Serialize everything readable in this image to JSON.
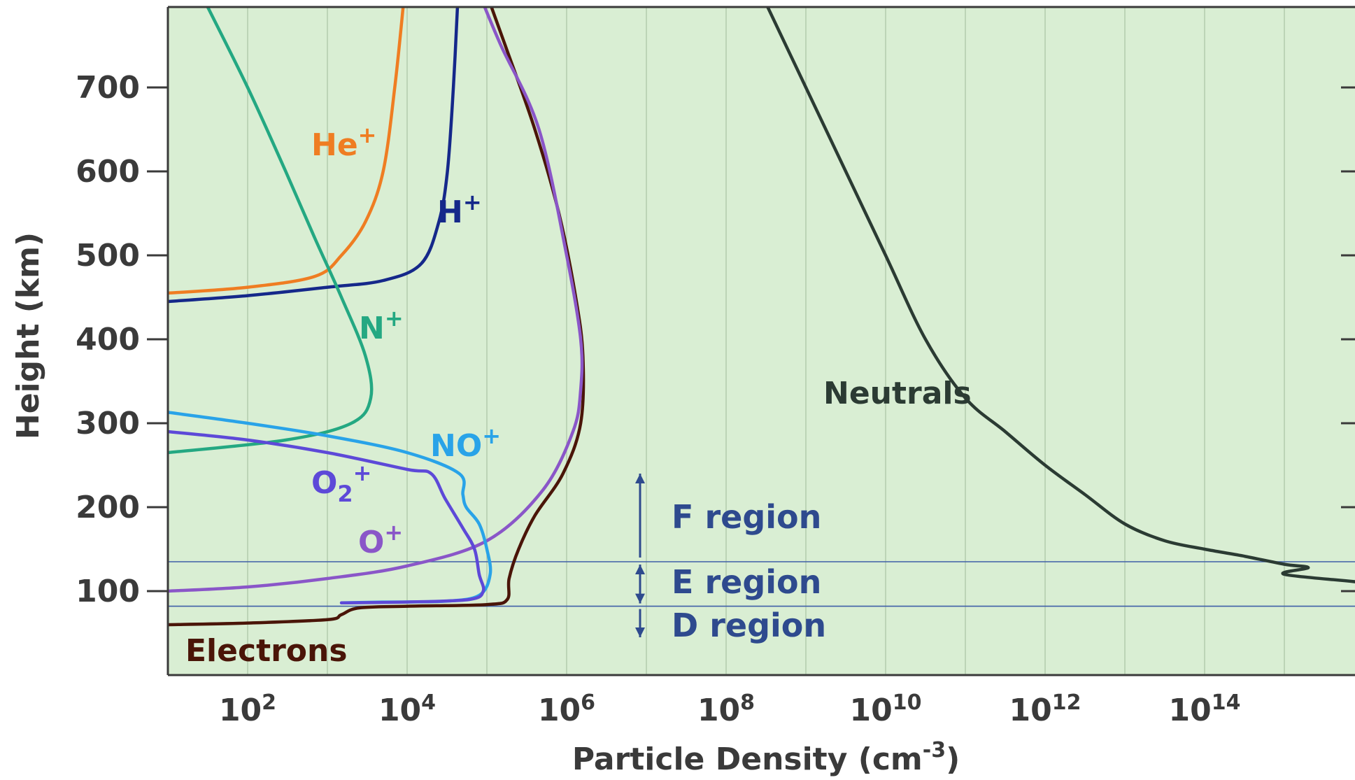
{
  "chart_data": {
    "type": "line",
    "title": "",
    "xlabel": "Particle Density (cm",
    "xlabel_sup": "-3",
    "xlabel_suffix": ")",
    "ylabel": "Height (km)",
    "xscale": "log",
    "xlim_log10": [
      1,
      16
    ],
    "ylim": [
      0,
      800
    ],
    "grid": "vertical",
    "background": "#d9eed3",
    "x_ticks": [
      {
        "base": "10",
        "exp": "2",
        "value": 100
      },
      {
        "base": "10",
        "exp": "4",
        "value": 10000
      },
      {
        "base": "10",
        "exp": "6",
        "value": 1000000
      },
      {
        "base": "10",
        "exp": "8",
        "value": 100000000
      },
      {
        "base": "10",
        "exp": "10",
        "value": 10000000000
      },
      {
        "base": "10",
        "exp": "12",
        "value": 1000000000000
      },
      {
        "base": "10",
        "exp": "14",
        "value": 100000000000000
      }
    ],
    "y_ticks": [
      "100",
      "200",
      "300",
      "400",
      "500",
      "600",
      "700"
    ],
    "series": [
      {
        "name": "Neutrals",
        "label": "Neutrals",
        "label_sup": "",
        "color": "#2b3b33",
        "points": [
          [
            316227766,
            800
          ],
          [
            1000000000,
            700
          ],
          [
            3162277660,
            600
          ],
          [
            10000000000,
            500
          ],
          [
            31622776600,
            400
          ],
          [
            100000000000,
            330
          ],
          [
            316227766000,
            290
          ],
          [
            1000000000000,
            250
          ],
          [
            3162277660000,
            215
          ],
          [
            10000000000000,
            180
          ],
          [
            31622776600000,
            160
          ],
          [
            100000000000000,
            150
          ],
          [
            300000000000000,
            142
          ],
          [
            1000000000000000,
            132
          ],
          [
            2000000000000000,
            128
          ],
          [
            1000000000000000,
            120
          ],
          [
            10000000000000000,
            110
          ],
          [
            50000000000000000,
            100
          ],
          [
            100000000000000000,
            80
          ],
          [
            200000000000000000,
            70
          ],
          [
            500000000000000000,
            60
          ]
        ]
      },
      {
        "name": "Electrons",
        "label": "Electrons",
        "label_sup": "",
        "color": "#4a1508",
        "points": [
          [
            10,
            60
          ],
          [
            100,
            62
          ],
          [
            1000,
            66
          ],
          [
            1500,
            72
          ],
          [
            2500,
            80
          ],
          [
            10000,
            82
          ],
          [
            100000,
            84
          ],
          [
            180000,
            90
          ],
          [
            190000,
            115
          ],
          [
            250000,
            150
          ],
          [
            400000,
            190
          ],
          [
            900000,
            240
          ],
          [
            1500000,
            300
          ],
          [
            1600000,
            380
          ],
          [
            1300000,
            450
          ],
          [
            800000,
            550
          ],
          [
            400000,
            650
          ],
          [
            170000,
            750
          ],
          [
            110000,
            800
          ]
        ]
      },
      {
        "name": "O+",
        "label": "O",
        "label_sup": "+",
        "color": "#8a56c8",
        "points": [
          [
            10,
            100
          ],
          [
            100,
            105
          ],
          [
            1000,
            115
          ],
          [
            10000,
            130
          ],
          [
            100000,
            160
          ],
          [
            500000,
            220
          ],
          [
            1200000,
            290
          ],
          [
            1500000,
            340
          ],
          [
            1500000,
            400
          ],
          [
            1000000,
            500
          ],
          [
            450000,
            650
          ],
          [
            150000,
            750
          ],
          [
            90000,
            800
          ]
        ]
      },
      {
        "name": "H+",
        "label": "H",
        "label_sup": "+",
        "color": "#15288a",
        "points": [
          [
            10,
            445
          ],
          [
            100,
            452
          ],
          [
            1000,
            462
          ],
          [
            5000,
            470
          ],
          [
            15000,
            490
          ],
          [
            25000,
            540
          ],
          [
            32000,
            600
          ],
          [
            38000,
            700
          ],
          [
            43000,
            800
          ]
        ]
      },
      {
        "name": "He+",
        "label": "He",
        "label_sup": "+",
        "color": "#ef7d22",
        "points": [
          [
            10,
            455
          ],
          [
            100,
            462
          ],
          [
            700,
            475
          ],
          [
            1500,
            500
          ],
          [
            3000,
            540
          ],
          [
            5000,
            600
          ],
          [
            7000,
            700
          ],
          [
            9000,
            800
          ]
        ]
      },
      {
        "name": "N+",
        "label": "N",
        "label_sup": "+",
        "color": "#24a882",
        "points": [
          [
            10,
            265
          ],
          [
            300,
            280
          ],
          [
            2000,
            300
          ],
          [
            3500,
            330
          ],
          [
            3000,
            380
          ],
          [
            1500,
            450
          ],
          [
            700,
            520
          ],
          [
            300,
            600
          ],
          [
            100,
            700
          ],
          [
            30,
            800
          ]
        ]
      },
      {
        "name": "NO+",
        "label": "NO",
        "label_sup": "+",
        "color": "#29a3e8",
        "points": [
          [
            10,
            313
          ],
          [
            100,
            300
          ],
          [
            1000,
            285
          ],
          [
            10000,
            265
          ],
          [
            45000,
            240
          ],
          [
            50000,
            215
          ],
          [
            55000,
            200
          ],
          [
            80000,
            180
          ],
          [
            100000,
            150
          ],
          [
            110000,
            120
          ],
          [
            80000,
            95
          ],
          [
            30000,
            88
          ],
          [
            5000,
            87
          ],
          [
            1500,
            86
          ]
        ]
      },
      {
        "name": "O2+",
        "label": "O",
        "label_sub": "2",
        "label_sup": "+",
        "color": "#5d49d8",
        "points": [
          [
            10,
            290
          ],
          [
            100,
            280
          ],
          [
            1000,
            265
          ],
          [
            10000,
            245
          ],
          [
            20000,
            240
          ],
          [
            30000,
            210
          ],
          [
            50000,
            175
          ],
          [
            70000,
            150
          ],
          [
            80000,
            120
          ],
          [
            90000,
            100
          ],
          [
            60000,
            90
          ],
          [
            10000,
            87
          ],
          [
            1500,
            86
          ]
        ]
      }
    ],
    "regions": [
      {
        "name": "F region",
        "label": "F region",
        "from": 135,
        "to": 240
      },
      {
        "name": "E region",
        "label": "E region",
        "from": 82,
        "to": 135
      },
      {
        "name": "D region",
        "label": "D region",
        "from": 45,
        "to": 82
      }
    ],
    "boundaries": [
      135,
      82
    ]
  }
}
